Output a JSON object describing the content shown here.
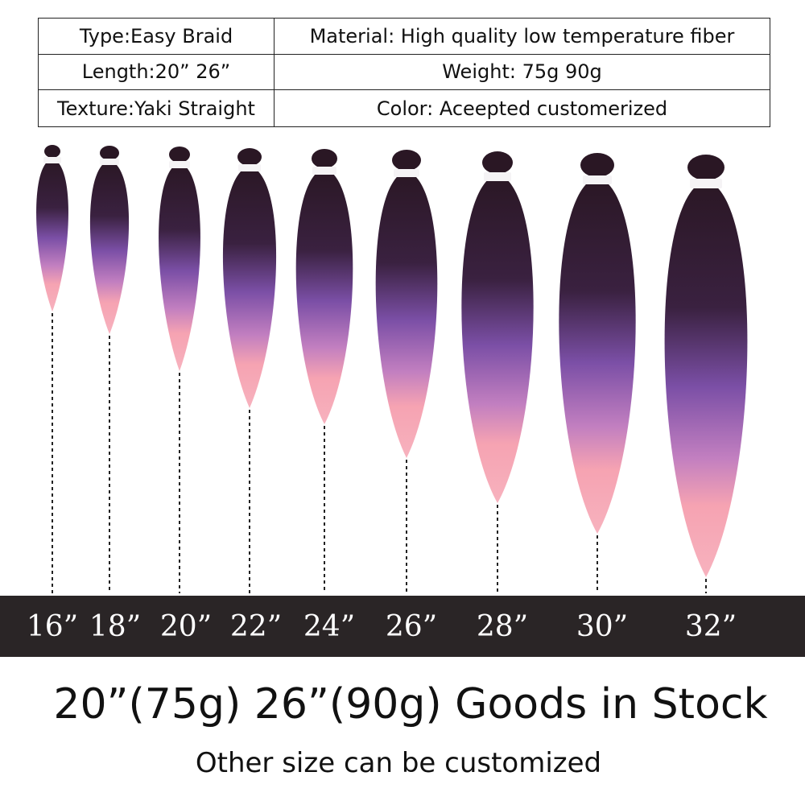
{
  "specs": {
    "type": "Type:Easy Braid",
    "material": "Material: High quality low temperature fiber",
    "length": "Length:20” 26”",
    "weight": "Weight: 75g 90g",
    "texture": "Texture:Yaki Straight",
    "color": "Color: Aceepted customerized"
  },
  "lengths": [
    "16”",
    "18”",
    "20”",
    "22”",
    "24”",
    "26”",
    "28”",
    "30”",
    "32”"
  ],
  "stock_text": "20”(75g) 26”(90g) Goods in Stock",
  "custom_text": "Other size can be customized",
  "colors": {
    "root": "#2a1724",
    "mid": "#7b4fa6",
    "tip": "#f6a3b2",
    "bar": "#2a2526",
    "text": "#111111"
  }
}
